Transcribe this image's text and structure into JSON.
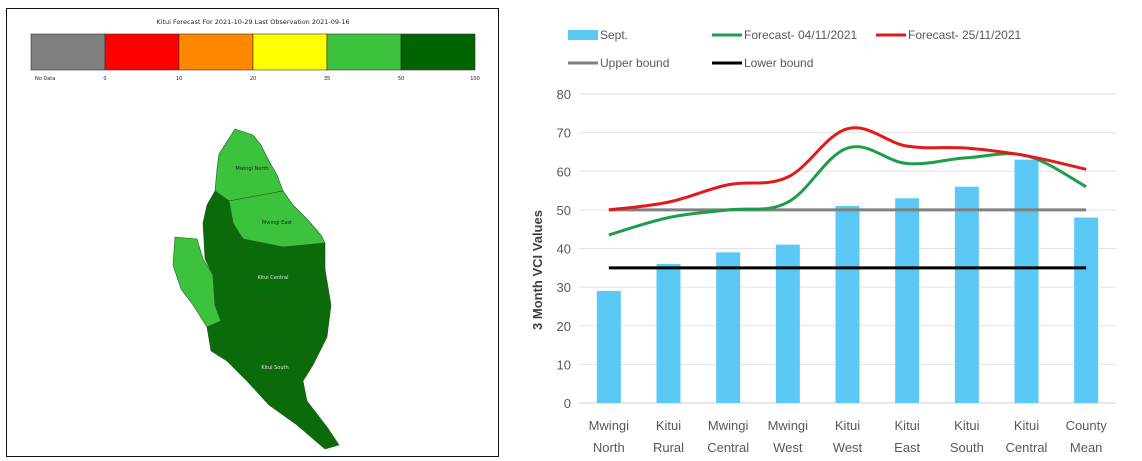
{
  "map": {
    "title": "Kitui Forecast For 2021-10-29 Last Observation 2021-09-16",
    "legend": [
      {
        "label": "No Data",
        "color": "#808080"
      },
      {
        "label": "0",
        "color": "#ff0000"
      },
      {
        "label": "10",
        "color": "#ff8800"
      },
      {
        "label": "20",
        "color": "#ffff00"
      },
      {
        "label": "35",
        "color": "#3cc23c"
      },
      {
        "label": "50",
        "color": "#006400"
      },
      {
        "label": "100",
        "color": ""
      }
    ],
    "region_labels": [
      "Mwingi North",
      "Mwingi East",
      "Kitui Central",
      "Kitui South"
    ]
  },
  "chart_data": {
    "type": "bar",
    "ylabel": "3 Month VCI Values",
    "ylim": [
      0,
      80
    ],
    "yticks": [
      "0",
      "10",
      "20",
      "30",
      "40",
      "50",
      "60",
      "70",
      "80"
    ],
    "categories": [
      [
        "Mwingi",
        "North"
      ],
      [
        "Kitui",
        "Rural"
      ],
      [
        "Mwingi",
        "Central"
      ],
      [
        "Mwingi",
        "West"
      ],
      [
        "Kitui",
        "West"
      ],
      [
        "Kitui",
        "East"
      ],
      [
        "Kitui",
        "South"
      ],
      [
        "Kitui",
        "Central"
      ],
      [
        "County",
        "Mean"
      ]
    ],
    "series": [
      {
        "name": "Sept.",
        "kind": "bar",
        "color": "#5bc8f5",
        "values": [
          29,
          36,
          39,
          41,
          51,
          53,
          56,
          63,
          48
        ]
      },
      {
        "name": "Forecast- 04/11/2021",
        "kind": "line",
        "color": "#1e9e4a",
        "values": [
          43.5,
          48,
          50,
          52,
          66,
          62,
          63.5,
          64,
          56
        ]
      },
      {
        "name": "Forecast- 25/11/2021",
        "kind": "line",
        "color": "#e21a1a",
        "values": [
          50,
          52,
          56.5,
          58.5,
          71,
          66.5,
          66,
          64,
          60.5
        ]
      },
      {
        "name": "Upper bound",
        "kind": "hline",
        "color": "#808080",
        "values": [
          50,
          50,
          50,
          50,
          50,
          50,
          50,
          50,
          50
        ]
      },
      {
        "name": "Lower bound",
        "kind": "hline",
        "color": "#000000",
        "values": [
          35,
          35,
          35,
          35,
          35,
          35,
          35,
          35,
          35
        ]
      }
    ]
  }
}
